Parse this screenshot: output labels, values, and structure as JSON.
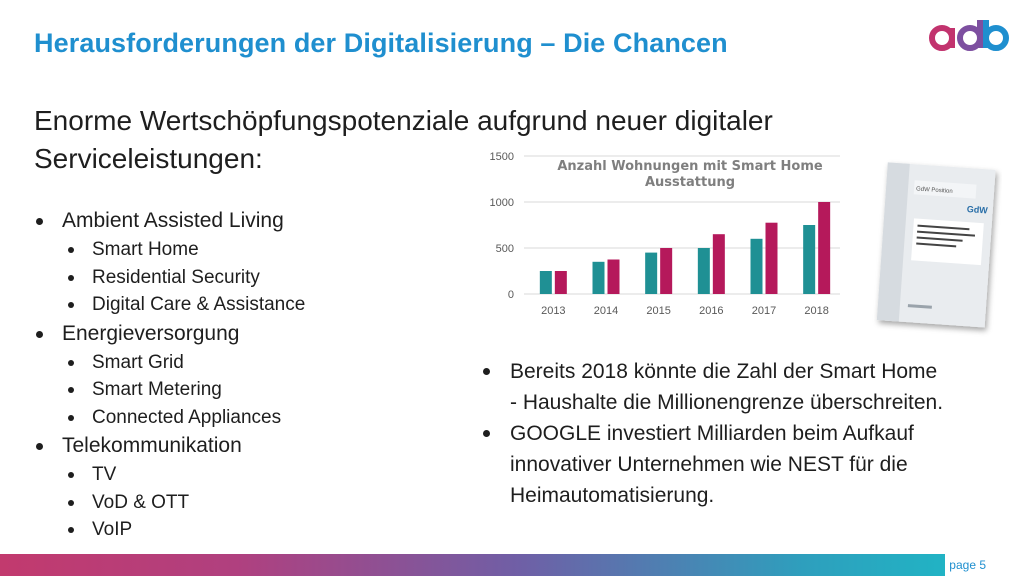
{
  "header": {
    "title": "Herausforderungen der Digitalisierung – Die Chancen"
  },
  "logo": {
    "text": "adb",
    "colors": [
      "#c2336e",
      "#1f8fcf"
    ]
  },
  "headline": "Enorme Wertschöpfungspotenziale aufgrund neuer digitaler Serviceleistungen:",
  "left_list": [
    {
      "label": "Ambient Assisted Living",
      "children": [
        "Smart Home",
        "Residential Security",
        "Digital Care & Assistance"
      ]
    },
    {
      "label": "Energieversorgung",
      "children": [
        "Smart Grid",
        "Smart Metering",
        "Connected Appliances"
      ]
    },
    {
      "label": "Telekommunikation",
      "children": [
        "TV",
        "VoD & OTT",
        "VoIP"
      ]
    }
  ],
  "chart_data": {
    "type": "bar",
    "title": "Anzahl Wohnungen mit Smart Home Ausstattung",
    "title_lines": [
      "Anzahl Wohnungen mit Smart Home",
      "Ausstattung"
    ],
    "categories": [
      "2013",
      "2014",
      "2015",
      "2016",
      "2017",
      "2018"
    ],
    "series": [
      {
        "values": [
          250,
          350,
          450,
          500,
          600,
          750
        ],
        "color": "#1f9094"
      },
      {
        "values": [
          250,
          375,
          500,
          650,
          775,
          1000
        ],
        "color": "#b5195b"
      }
    ],
    "ylim": [
      0,
      1500
    ],
    "yticks": [
      "0",
      "500",
      "1000",
      "1500"
    ],
    "grid": true
  },
  "right_list": [
    "Bereits 2018 könnte die Zahl der Smart Home - Haushalte die Millionengrenze überschreiten.",
    "GOOGLE investiert Milliarden beim Aufkauf innovativer Unternehmen wie NEST für die Heimautomatisierung."
  ],
  "document_image": {
    "brand": "GdW",
    "tag": "GdW Position"
  },
  "footer": {
    "page": "page 5"
  },
  "colors": {
    "title": "#1f8fcf",
    "accent": "#c2336e"
  }
}
